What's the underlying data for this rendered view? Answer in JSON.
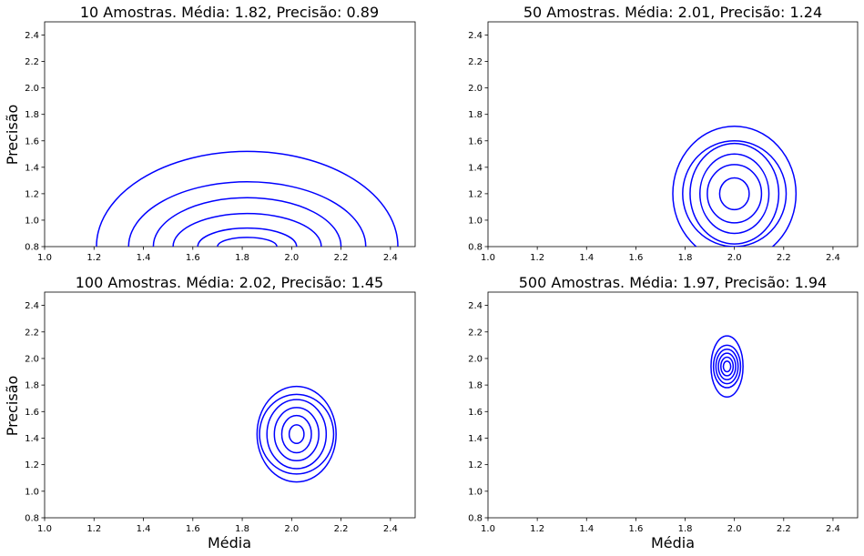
{
  "figure": {
    "background": "#ffffff",
    "contour_color": "#0000ff"
  },
  "chart_data": [
    {
      "type": "contour",
      "title": "10 Amostras. Média: 1.82, Precisão: 0.89",
      "xlabel": "",
      "ylabel": "Precisão",
      "xlim": [
        1.0,
        2.5
      ],
      "ylim": [
        0.8,
        2.5
      ],
      "xticks": [
        "1.0",
        "1.2",
        "1.4",
        "1.6",
        "1.8",
        "2.0",
        "2.2",
        "2.4"
      ],
      "yticks": [
        "0.8",
        "1.0",
        "1.2",
        "1.4",
        "1.6",
        "1.8",
        "2.0",
        "2.2",
        "2.4"
      ],
      "center": [
        1.82,
        0.8
      ],
      "levels": [
        {
          "rx": 0.12,
          "ry": 0.07
        },
        {
          "rx": 0.2,
          "ry": 0.14
        },
        {
          "rx": 0.3,
          "ry": 0.25
        },
        {
          "rx": 0.38,
          "ry": 0.37
        },
        {
          "rx": 0.48,
          "ry": 0.49
        },
        {
          "rx": 0.61,
          "ry": 0.72
        }
      ]
    },
    {
      "type": "contour",
      "title": "50 Amostras. Média: 2.01, Precisão: 1.24",
      "xlabel": "",
      "ylabel": "",
      "xlim": [
        1.0,
        2.5
      ],
      "ylim": [
        0.8,
        2.5
      ],
      "xticks": [
        "1.0",
        "1.2",
        "1.4",
        "1.6",
        "1.8",
        "2.0",
        "2.2",
        "2.4"
      ],
      "yticks": [
        "0.8",
        "1.0",
        "1.2",
        "1.4",
        "1.6",
        "1.8",
        "2.0",
        "2.2",
        "2.4"
      ],
      "center": [
        2.0,
        1.2
      ],
      "levels": [
        {
          "rx": 0.06,
          "ry": 0.12
        },
        {
          "rx": 0.11,
          "ry": 0.22
        },
        {
          "rx": 0.14,
          "ry": 0.3
        },
        {
          "rx": 0.18,
          "ry": 0.38
        },
        {
          "rx": 0.21,
          "ry": 0.4
        },
        {
          "rx": 0.25,
          "ry": 0.51
        }
      ]
    },
    {
      "type": "contour",
      "title": "100 Amostras. Média: 2.02, Precisão: 1.45",
      "xlabel": "Média",
      "ylabel": "Precisão",
      "xlim": [
        1.0,
        2.5
      ],
      "ylim": [
        0.8,
        2.5
      ],
      "xticks": [
        "1.0",
        "1.2",
        "1.4",
        "1.6",
        "1.8",
        "2.0",
        "2.2",
        "2.4"
      ],
      "yticks": [
        "0.8",
        "1.0",
        "1.2",
        "1.4",
        "1.6",
        "1.8",
        "2.0",
        "2.2",
        "2.4"
      ],
      "center": [
        2.02,
        1.43
      ],
      "levels": [
        {
          "rx": 0.03,
          "ry": 0.07
        },
        {
          "rx": 0.06,
          "ry": 0.14
        },
        {
          "rx": 0.09,
          "ry": 0.2
        },
        {
          "rx": 0.12,
          "ry": 0.26
        },
        {
          "rx": 0.15,
          "ry": 0.3
        },
        {
          "rx": 0.16,
          "ry": 0.36
        }
      ]
    },
    {
      "type": "contour",
      "title": "500 Amostras. Média: 1.97, Precisão: 1.94",
      "xlabel": "Média",
      "ylabel": "",
      "xlim": [
        1.0,
        2.5
      ],
      "ylim": [
        0.8,
        2.5
      ],
      "xticks": [
        "1.0",
        "1.2",
        "1.4",
        "1.6",
        "1.8",
        "2.0",
        "2.2",
        "2.4"
      ],
      "yticks": [
        "0.8",
        "1.0",
        "1.2",
        "1.4",
        "1.6",
        "1.8",
        "2.0",
        "2.2",
        "2.4"
      ],
      "center": [
        1.97,
        1.94
      ],
      "levels": [
        {
          "rx": 0.015,
          "ry": 0.04
        },
        {
          "rx": 0.025,
          "ry": 0.07
        },
        {
          "rx": 0.035,
          "ry": 0.1
        },
        {
          "rx": 0.045,
          "ry": 0.13
        },
        {
          "rx": 0.055,
          "ry": 0.16
        },
        {
          "rx": 0.065,
          "ry": 0.23
        }
      ]
    }
  ]
}
